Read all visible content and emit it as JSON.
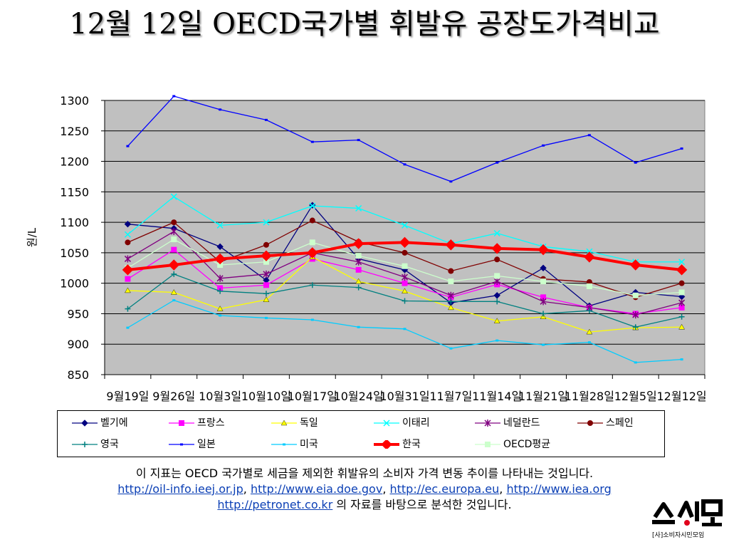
{
  "title": "12월 12일 OECD국가별 휘발유 공장도가격비교",
  "chart_data": {
    "type": "line",
    "title": "12월 12일 OECD국가별 휘발유 공장도가격비교",
    "ylabel": "원/L",
    "xlabel": "",
    "ylim": [
      850,
      1300
    ],
    "yticks": [
      850,
      900,
      950,
      1000,
      1050,
      1100,
      1150,
      1200,
      1250,
      1300
    ],
    "grid": true,
    "legend_position": "bottom",
    "categories": [
      "9월19일",
      "9월26일",
      "10월3일",
      "10월10일",
      "10월17일",
      "10월24일",
      "10월31일",
      "11월7일",
      "11월14일",
      "11월21일",
      "11월28일",
      "12월5일",
      "12월12일"
    ],
    "series": [
      {
        "name": "벨기에",
        "color": "#000080",
        "marker": "diamond",
        "values": [
          1097,
          1090,
          1060,
          1005,
          1128,
          1040,
          1022,
          968,
          980,
          1025,
          963,
          985,
          978
        ]
      },
      {
        "name": "프랑스",
        "color": "#ff00ff",
        "marker": "square",
        "values": [
          1007,
          1055,
          992,
          997,
          1040,
          1022,
          1000,
          977,
          998,
          977,
          960,
          950,
          960
        ]
      },
      {
        "name": "독일",
        "color": "#ffff00",
        "marker": "triangle",
        "values": [
          988,
          985,
          958,
          973,
          1043,
          1003,
          987,
          960,
          938,
          945,
          920,
          927,
          928
        ]
      },
      {
        "name": "이태리",
        "color": "#00ffff",
        "marker": "x",
        "values": [
          1080,
          1142,
          1095,
          1100,
          1127,
          1123,
          1095,
          1065,
          1082,
          1060,
          1052,
          1035,
          1035
        ]
      },
      {
        "name": "네덜란드",
        "color": "#800080",
        "marker": "star",
        "values": [
          1040,
          1085,
          1008,
          1015,
          1050,
          1035,
          1010,
          980,
          1003,
          970,
          960,
          948,
          968
        ]
      },
      {
        "name": "스페인",
        "color": "#800000",
        "marker": "circle",
        "values": [
          1067,
          1100,
          1035,
          1063,
          1103,
          1068,
          1050,
          1020,
          1039,
          1007,
          1002,
          977,
          1000
        ]
      },
      {
        "name": "영국",
        "color": "#008080",
        "marker": "plus",
        "values": [
          958,
          1015,
          987,
          983,
          997,
          993,
          971,
          970,
          970,
          950,
          955,
          928,
          945
        ]
      },
      {
        "name": "일본",
        "color": "#0000ff",
        "marker": "dash",
        "values": [
          1225,
          1307,
          1285,
          1268,
          1232,
          1235,
          1195,
          1167,
          1198,
          1226,
          1243,
          1198,
          1221
        ]
      },
      {
        "name": "미국",
        "color": "#00ccff",
        "marker": "dash",
        "values": [
          927,
          972,
          947,
          943,
          940,
          928,
          925,
          893,
          906,
          899,
          903,
          870,
          875
        ]
      },
      {
        "name": "한국",
        "color": "#ff0000",
        "marker": "bigdiamond",
        "values": [
          1022,
          1030,
          1040,
          1045,
          1050,
          1065,
          1067,
          1063,
          1057,
          1055,
          1043,
          1030,
          1022
        ]
      },
      {
        "name": "OECD평균",
        "color": "#ccffcc",
        "marker": "square",
        "values": [
          1025,
          1072,
          1030,
          1035,
          1067,
          1045,
          1028,
          1003,
          1012,
          1003,
          995,
          980,
          985
        ]
      }
    ]
  },
  "footer": {
    "line1": "이 지표는 OECD 국가별로 세금을 제외한 휘발유의 소비자 가격 변동 추이를 나타내는 것입니다.",
    "link1": "http://oil-info.ieej.or.jp",
    "sep1": ", ",
    "link2": "http://www.eia.doe.gov",
    "sep2": ", ",
    "link3": "http://ec.europa.eu",
    "sep3": ", ",
    "link4": "http://www.iea.org",
    "link5": "http://petronet.co.kr",
    "line3_text": " 의 자료를 바탕으로 분석한 것입니다."
  },
  "logo": {
    "mark_text": "소시모",
    "caption": "[사]소비자시민모임",
    "color": "#000000",
    "accent": "#e0001b"
  }
}
